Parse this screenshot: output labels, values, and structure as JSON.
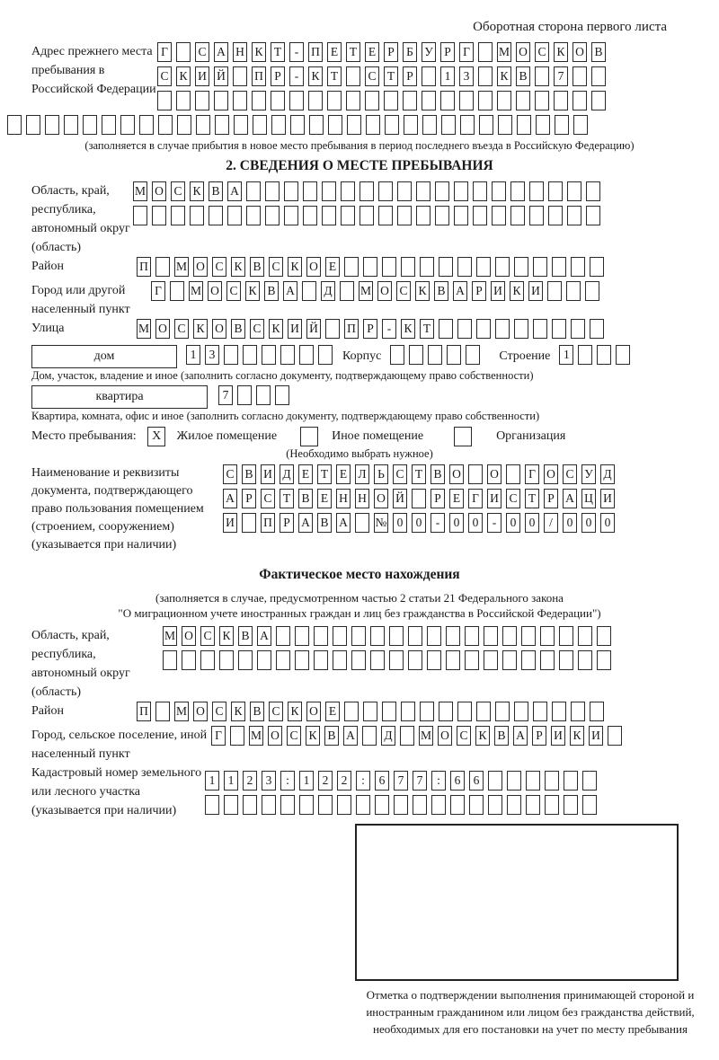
{
  "page": {
    "header_note": "Оборотная сторона первого листа"
  },
  "prev_address": {
    "label": "Адрес прежнего места пребывания в Российской Федерации",
    "rows": [
      {
        "chars": "Г САНКТ-ПЕТЕРБУРГ МОСКОВ",
        "count": 24
      },
      {
        "chars": "СКИЙ ПР-КТ СТР 13 КВ 7",
        "count": 24
      },
      {
        "chars": "",
        "count": 24
      },
      {
        "chars": "",
        "count": 31
      }
    ],
    "note": "(заполняется в случае прибытия в новое место пребывания в период последнего въезда в Российскую Федерацию)"
  },
  "section2": {
    "title": "2. СВЕДЕНИЯ О МЕСТЕ ПРЕБЫВАНИЯ",
    "region": {
      "label": "Область, край, республика, автономный округ (область)",
      "rows": [
        {
          "chars": "МОСКВА",
          "count": 25
        },
        {
          "chars": "",
          "count": 25
        }
      ]
    },
    "district": {
      "label": "Район",
      "row": {
        "chars": "П МОСКВСКОЕ",
        "count": 25
      }
    },
    "city": {
      "label": "Город или другой населенный пункт",
      "row": {
        "chars": "Г МОСКВА Д МОСКВАРИКИ",
        "count": 24
      }
    },
    "street": {
      "label": "Улица",
      "row": {
        "chars": "МОСКОВСКИЙ ПР-КТ",
        "count": 25
      }
    },
    "house": {
      "box_label": "дом",
      "row": {
        "chars": "13",
        "count": 8
      },
      "korpus_label": "Корпус",
      "korpus_row": {
        "chars": "",
        "count": 5
      },
      "stroenie_label": "Строение",
      "stroenie_row": {
        "chars": "1",
        "count": 4
      },
      "note": "Дом, участок, владение и иное (заполнить согласно документу, подтверждающему право собственности)"
    },
    "apartment": {
      "box_label": "квартира",
      "row": {
        "chars": "7",
        "count": 4
      },
      "note": "Квартира, комната, офис и иное (заполнить согласно документу, подтверждающему право собственности)"
    },
    "stay": {
      "label": "Место пребывания:",
      "options": [
        {
          "box": {
            "chars": "X",
            "count": 1
          },
          "label": "Жилое помещение"
        },
        {
          "box": {
            "chars": "",
            "count": 1
          },
          "label": "Иное помещение"
        },
        {
          "box": {
            "chars": "",
            "count": 1
          },
          "label": "Организация"
        }
      ],
      "note": "(Необходимо выбрать нужное)"
    },
    "doc": {
      "label": "Наименование и реквизиты документа, подтверждающего право пользования помещением (строением, сооружением) (указывается при наличии)",
      "rows": [
        {
          "chars": "СВИДЕТЕЛЬСТВО О ГОСУД",
          "count": 21
        },
        {
          "chars": "АРСТВЕННОЙ РЕГИСТРАЦИ",
          "count": 21
        },
        {
          "chars": "И ПРАВА №00-00-00/000",
          "count": 21
        }
      ]
    }
  },
  "actual_location": {
    "title": "Фактическое место нахождения",
    "note_line1": "(заполняется в случае, предусмотренном частью 2 статьи 21 Федерального закона",
    "note_line2": "\"О миграционном учете иностранных граждан и лиц без гражданства в Российской Федерации\")",
    "region": {
      "label": "Область, край, республика, автономный округ (область)",
      "rows": [
        {
          "chars": "МОСКВА",
          "count": 24
        },
        {
          "chars": "",
          "count": 24
        }
      ]
    },
    "district": {
      "label": "Район",
      "row": {
        "chars": "П МОСКВСКОЕ",
        "count": 25
      }
    },
    "city": {
      "label": "Город, сельское поселение, иной населенный пункт",
      "row": {
        "chars": "Г МОСКВА Д МОСКВАРИКИ",
        "count": 22
      }
    },
    "cadastral": {
      "label": "Кадастровый номер земельного или лесного участка (указывается при наличии)",
      "rows": [
        {
          "chars": "1123:122:677:66",
          "count": 21
        },
        {
          "chars": "",
          "count": 21
        }
      ]
    },
    "stamp_caption": "Отметка о подтверждении выполнения принимающей стороной и иностранным гражданином или лицом без гражданства действий, необходимых для его постановки на учет по месту пребывания"
  }
}
